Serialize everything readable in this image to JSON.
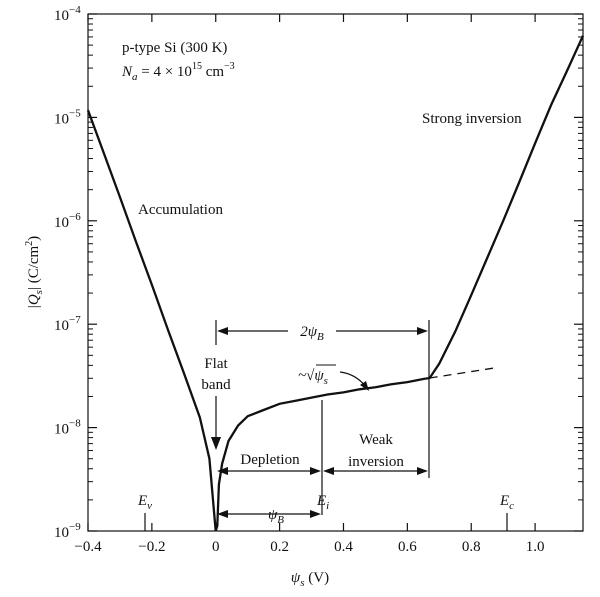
{
  "chart_data": {
    "type": "line",
    "title": "",
    "xlabel": "ψs (V)",
    "ylabel": "|Qs| (C/cm²)",
    "xlim": [
      -0.4,
      1.15
    ],
    "ylim_log10": [
      -9,
      -4
    ],
    "x_ticks": [
      -0.4,
      -0.2,
      0,
      0.2,
      0.4,
      0.6,
      0.8,
      1.0
    ],
    "x_tick_labels": [
      "−0.4",
      "−0.2",
      "0",
      "0.2",
      "0.4",
      "0.6",
      "0.8",
      "1.0"
    ],
    "y_ticks_exp": [
      -4,
      -5,
      -6,
      -7,
      -8,
      -9
    ],
    "y_tick_base": "10",
    "y_tick_exps": [
      "−4",
      "−5",
      "−6",
      "−7",
      "−8",
      "−9"
    ],
    "series": [
      {
        "name": "|Qs|",
        "x": [
          -0.4,
          -0.35,
          -0.3,
          -0.25,
          -0.2,
          -0.15,
          -0.1,
          -0.05,
          -0.02,
          0.0,
          0.005,
          0.01,
          0.02,
          0.04,
          0.07,
          0.1,
          0.15,
          0.2,
          0.25,
          0.3,
          0.35,
          0.4,
          0.45,
          0.5,
          0.55,
          0.6,
          0.65,
          0.67,
          0.7,
          0.75,
          0.8,
          0.85,
          0.9,
          0.95,
          1.0,
          1.05,
          1.1,
          1.15
        ],
        "log10_y": [
          -4.93,
          -5.35,
          -5.77,
          -6.2,
          -6.62,
          -7.05,
          -7.47,
          -7.9,
          -8.3,
          -9.0,
          -8.95,
          -8.55,
          -8.35,
          -8.13,
          -7.98,
          -7.89,
          -7.83,
          -7.77,
          -7.74,
          -7.71,
          -7.68,
          -7.66,
          -7.63,
          -7.61,
          -7.58,
          -7.56,
          -7.53,
          -7.52,
          -7.38,
          -7.07,
          -6.72,
          -6.36,
          -6.0,
          -5.63,
          -5.25,
          -4.88,
          -4.55,
          -4.21
        ]
      }
    ],
    "extrapolation": {
      "name": "~√ψs",
      "x": [
        0.67,
        0.88
      ],
      "log10_y": [
        -7.52,
        -7.42
      ]
    },
    "annotations": {
      "material": "p-type Si (300 K)",
      "doping": {
        "symbol": "N",
        "sub": "a",
        "text": " = 4 × 10",
        "exp": "15",
        "unit": " cm",
        "unit_exp": "−3"
      },
      "accumulation": "Accumulation",
      "strong_inversion": "Strong inversion",
      "flat_band_line1": "Flat",
      "flat_band_line2": "band",
      "depletion": "Depletion",
      "weak_inversion_line1": "Weak",
      "weak_inversion_line2": "inversion",
      "two_psi_b": "2ψ",
      "psi_b": "ψ",
      "psi_b_sub": "B",
      "sqrt_label": "~√ψ",
      "sqrt_sub": "s",
      "ev": "E",
      "ev_sub": "v",
      "ei": "E",
      "ei_sub": "i",
      "ec": "E",
      "ec_sub": "c"
    },
    "band_markers": {
      "Ev": -0.22,
      "Ei": 0.33,
      "Ec": 0.9
    },
    "two_psi_b_span": [
      0,
      0.66
    ],
    "psi_b_span": [
      0,
      0.33
    ]
  }
}
